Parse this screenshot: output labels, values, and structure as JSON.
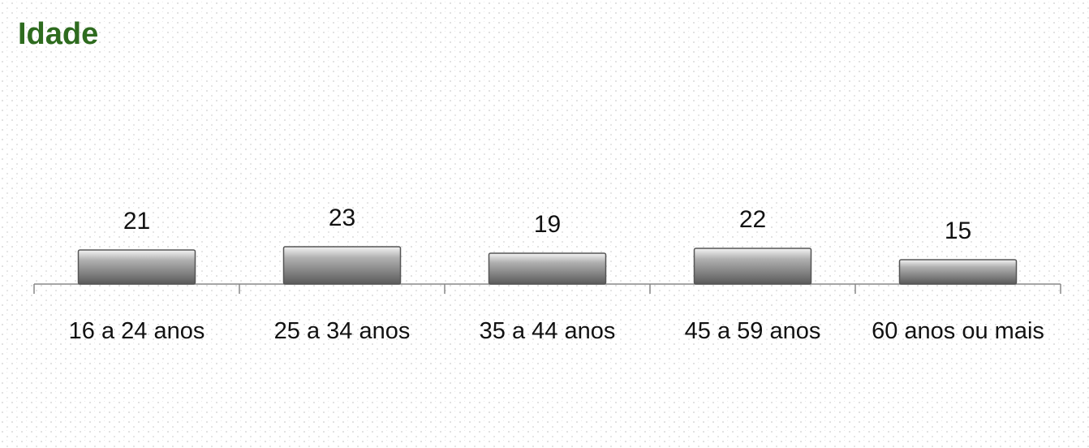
{
  "chart_data": {
    "type": "bar",
    "title": "Idade",
    "categories": [
      "16 a 24 anos",
      "25 a 34 anos",
      "35 a 44 anos",
      "45 a 59 anos",
      "60 anos ou mais"
    ],
    "values": [
      21,
      23,
      19,
      22,
      15
    ],
    "color": "#8a8a8a",
    "ylim": [
      0,
      150
    ],
    "grid": false
  }
}
